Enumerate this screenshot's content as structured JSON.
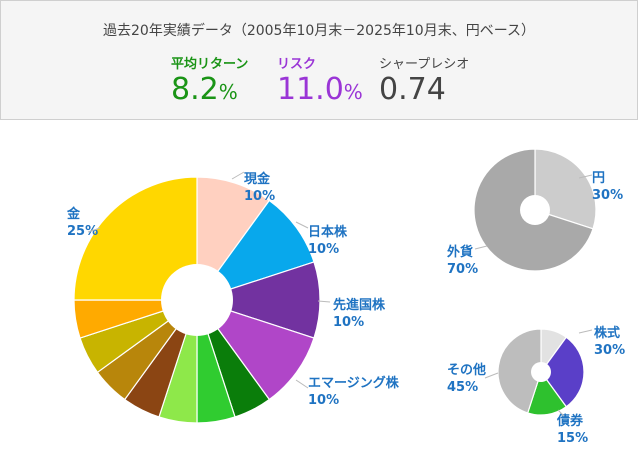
{
  "summary": {
    "title": "過去20年実績データ（2005年10月末－2025年10月末、円ベース）",
    "stats": [
      {
        "label": "平均リターン",
        "value": "8.2",
        "unit": "%"
      },
      {
        "label": "リスク",
        "value": "11.0",
        "unit": "%"
      },
      {
        "label": "シャープレシオ",
        "value": "0.74",
        "unit": ""
      }
    ]
  },
  "colors": {
    "return": "#1a9416",
    "risk": "#9a35d6",
    "label": "#1f73c2"
  },
  "chart_data": [
    {
      "type": "pie",
      "slices": [
        {
          "name": "現金",
          "percent": "10%",
          "value": 10,
          "color": "#ffd0c0"
        },
        {
          "name": "日本株",
          "percent": "10%",
          "value": 10,
          "color": "#08a8ec"
        },
        {
          "name": "先進国株",
          "percent": "10%",
          "value": 10,
          "color": "#7232a0"
        },
        {
          "name": "エマージング株",
          "percent": "10%",
          "value": 10,
          "color": "#b046c8"
        },
        {
          "name": "",
          "value": 5,
          "color": "#0a7d0a"
        },
        {
          "name": "",
          "value": 5,
          "color": "#30cc30"
        },
        {
          "name": "",
          "value": 5,
          "color": "#8ee84a"
        },
        {
          "name": "",
          "value": 5,
          "color": "#8b4513"
        },
        {
          "name": "",
          "value": 5,
          "color": "#b8860b"
        },
        {
          "name": "",
          "value": 5,
          "color": "#c8b400"
        },
        {
          "name": "",
          "value": 5,
          "color": "#ffaa00"
        },
        {
          "name": "金",
          "percent": "25%",
          "value": 25,
          "color": "#ffd700"
        }
      ]
    },
    {
      "type": "pie",
      "slices": [
        {
          "name": "円",
          "percent": "30%",
          "value": 30,
          "color": "#cccccc"
        },
        {
          "name": "外貨",
          "percent": "70%",
          "value": 70,
          "color": "#a9a9a9"
        }
      ]
    },
    {
      "type": "pie",
      "slices": [
        {
          "name": "",
          "value": 10,
          "color": "#e2e2e2"
        },
        {
          "name": "株式",
          "percent": "30%",
          "value": 30,
          "color": "#5a3fc8"
        },
        {
          "name": "債券",
          "percent": "15%",
          "value": 15,
          "color": "#2ec12e"
        },
        {
          "name": "その他",
          "percent": "45%",
          "value": 45,
          "color": "#bdbdbd"
        }
      ]
    }
  ]
}
